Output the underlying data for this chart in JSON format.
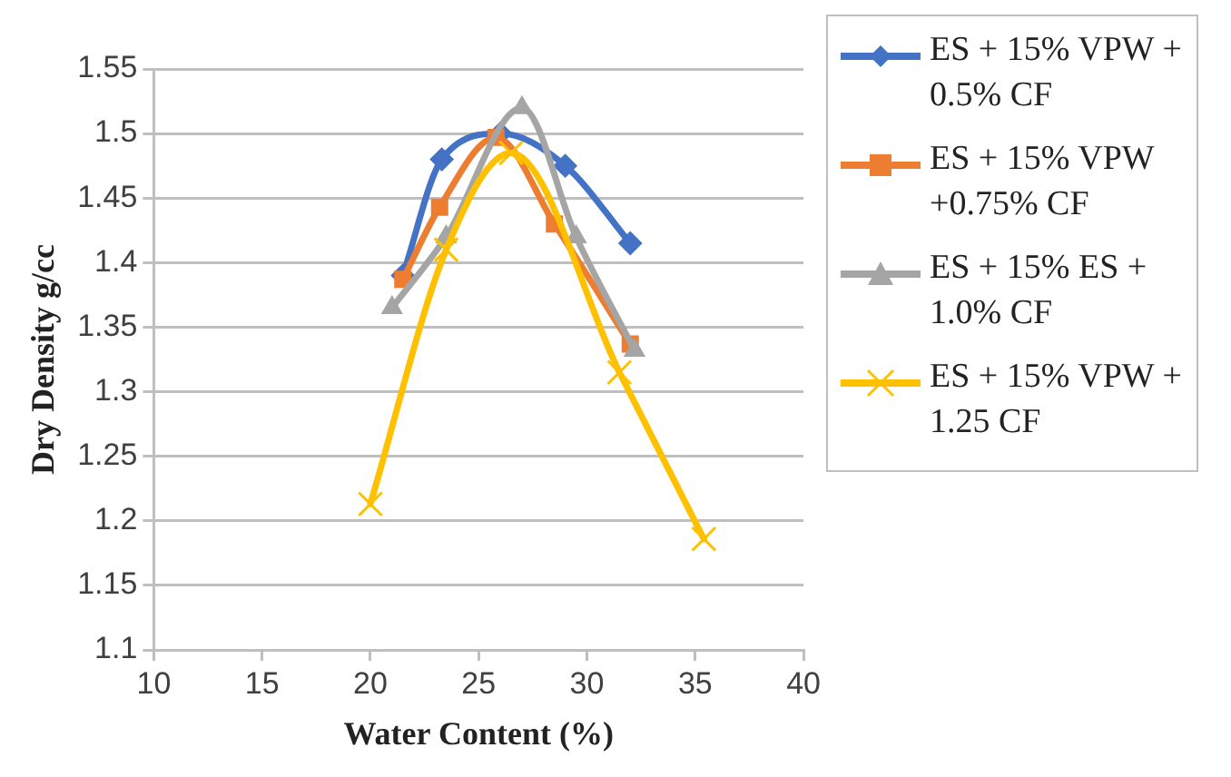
{
  "chart_data": {
    "type": "line",
    "xlabel": "Water Content (%)",
    "ylabel": "Dry Density g/cc",
    "xlim": [
      10,
      40
    ],
    "xticks": [
      10,
      15,
      20,
      25,
      30,
      35,
      40
    ],
    "ylim": [
      1.1,
      1.55
    ],
    "yticks": [
      1.1,
      1.15,
      1.2,
      1.25,
      1.3,
      1.35,
      1.4,
      1.45,
      1.5,
      1.55
    ],
    "grid": "y",
    "legend": "right",
    "line_style": "solid",
    "series": [
      {
        "name": "ES + 15% VPW + 0.5% CF",
        "color": "#4472c4",
        "marker": "diamond",
        "x": [
          21.5,
          23.3,
          26,
          29,
          32
        ],
        "values": [
          1.39,
          1.48,
          1.5,
          1.475,
          1.415
        ]
      },
      {
        "name": "ES + 15% VPW +0.75% CF",
        "color": "#ed7d31",
        "marker": "square",
        "x": [
          21.5,
          23.2,
          25.8,
          28.5,
          32
        ],
        "values": [
          1.387,
          1.443,
          1.497,
          1.43,
          1.337
        ]
      },
      {
        "name": "ES + 15% ES + 1.0% CF",
        "color": "#a5a5a5",
        "marker": "triangle",
        "x": [
          21,
          23.5,
          27,
          29.5,
          32.2
        ],
        "values": [
          1.365,
          1.42,
          1.52,
          1.42,
          1.332
        ]
      },
      {
        "name": "ES + 15% VPW + 1.25 CF",
        "color": "#ffc000",
        "marker": "cross",
        "x": [
          20,
          23.5,
          26.5,
          31.5,
          35.4
        ],
        "values": [
          1.213,
          1.41,
          1.485,
          1.315,
          1.186
        ]
      }
    ]
  }
}
